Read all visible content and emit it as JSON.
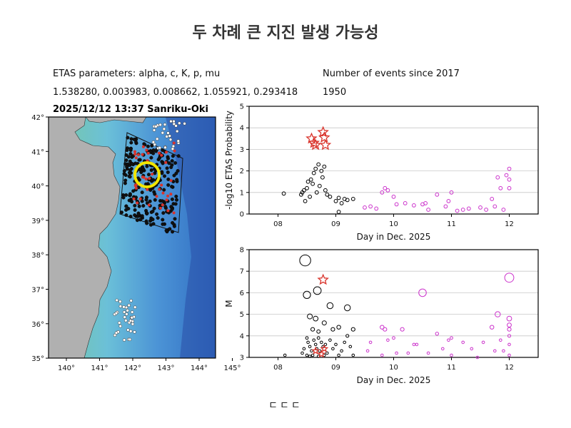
{
  "title": "두 차례 큰 지진 발생 가능성",
  "info": {
    "params_label": "ETAS parameters: alpha, c, K, p, mu",
    "params_values": "1.538280, 0.003983, 0.008662, 1.055921, 0.293418",
    "events_label": "Number of events since 2017",
    "events_value": "1950"
  },
  "map": {
    "title": "2025/12/12 13:37 Sanriku-Oki",
    "lon_ticks": [
      "140°",
      "141°",
      "142°",
      "143°",
      "144°",
      "145°"
    ],
    "lat_ticks": [
      "42°",
      "41°",
      "40°",
      "39°",
      "38°",
      "37°",
      "36°",
      "35°"
    ]
  },
  "footer": "ㄷㄷㄷ",
  "colors": {
    "prior": "#000000",
    "recent": "#cc33cc",
    "mainshock": "#d9332b",
    "highlight": "#f2e600"
  },
  "chart_data": [
    {
      "type": "scatter",
      "title": "",
      "xlabel": "Day in Dec. 2025",
      "ylabel": "-log10 ETAS Probability",
      "xlim": [
        7.5,
        12.5
      ],
      "ylim": [
        0,
        5
      ],
      "x_ticks": [
        "08",
        "09",
        "10",
        "11",
        "12"
      ],
      "y_ticks": [
        "0",
        "1",
        "2",
        "3",
        "4",
        "5"
      ],
      "grid": true,
      "series": [
        {
          "marker": "circle",
          "color": "#000000",
          "points": [
            [
              8.1,
              0.95
            ],
            [
              8.4,
              0.9
            ],
            [
              8.42,
              1.0
            ],
            [
              8.45,
              1.1
            ],
            [
              8.47,
              0.6
            ],
            [
              8.5,
              1.2
            ],
            [
              8.52,
              1.5
            ],
            [
              8.55,
              0.8
            ],
            [
              8.57,
              1.6
            ],
            [
              8.6,
              1.4
            ],
            [
              8.62,
              1.9
            ],
            [
              8.65,
              2.1
            ],
            [
              8.67,
              1.0
            ],
            [
              8.7,
              2.3
            ],
            [
              8.72,
              1.3
            ],
            [
              8.75,
              2.0
            ],
            [
              8.77,
              1.7
            ],
            [
              8.8,
              2.2
            ],
            [
              8.82,
              1.1
            ],
            [
              8.85,
              0.9
            ],
            [
              8.9,
              0.8
            ],
            [
              9.0,
              0.6
            ],
            [
              9.05,
              0.75
            ],
            [
              9.1,
              0.5
            ],
            [
              9.15,
              0.7
            ],
            [
              9.2,
              0.65
            ],
            [
              9.05,
              0.1
            ],
            [
              9.3,
              0.7
            ]
          ]
        },
        {
          "marker": "circle",
          "color": "#cc33cc",
          "points": [
            [
              9.5,
              0.3
            ],
            [
              9.6,
              0.35
            ],
            [
              9.8,
              1.0
            ],
            [
              9.85,
              1.2
            ],
            [
              9.9,
              1.1
            ],
            [
              9.7,
              0.25
            ],
            [
              10.0,
              0.8
            ],
            [
              10.05,
              0.45
            ],
            [
              10.2,
              0.5
            ],
            [
              10.35,
              0.4
            ],
            [
              10.5,
              0.45
            ],
            [
              10.55,
              0.5
            ],
            [
              10.6,
              0.2
            ],
            [
              10.75,
              0.9
            ],
            [
              10.9,
              0.35
            ],
            [
              10.95,
              0.6
            ],
            [
              11.0,
              1.0
            ],
            [
              11.1,
              0.15
            ],
            [
              11.2,
              0.2
            ],
            [
              11.3,
              0.25
            ],
            [
              11.5,
              0.3
            ],
            [
              11.6,
              0.2
            ],
            [
              11.7,
              0.7
            ],
            [
              11.8,
              1.7
            ],
            [
              11.85,
              1.2
            ],
            [
              11.95,
              1.8
            ],
            [
              12.0,
              2.1
            ],
            [
              12.0,
              1.6
            ],
            [
              12.0,
              1.2
            ],
            [
              11.75,
              0.35
            ],
            [
              11.9,
              0.2
            ]
          ]
        },
        {
          "marker": "star",
          "color": "#d9332b",
          "points": [
            [
              8.58,
              3.5
            ],
            [
              8.62,
              3.3
            ],
            [
              8.65,
              3.2
            ],
            [
              8.78,
              3.8
            ],
            [
              8.8,
              3.55
            ],
            [
              8.82,
              3.2
            ]
          ]
        }
      ]
    },
    {
      "type": "scatter",
      "title": "",
      "xlabel": "Day in Dec. 2025",
      "ylabel": "M",
      "xlim": [
        7.5,
        12.5
      ],
      "ylim": [
        3,
        8
      ],
      "x_ticks": [
        "08",
        "09",
        "10",
        "11",
        "12"
      ],
      "y_ticks": [
        "3",
        "4",
        "5",
        "6",
        "7",
        "8"
      ],
      "grid": true,
      "series": [
        {
          "marker": "circle",
          "color": "#000000",
          "points": [
            [
              8.47,
              7.5
            ],
            [
              8.5,
              5.9
            ],
            [
              8.68,
              6.1
            ],
            [
              8.9,
              5.4
            ],
            [
              9.2,
              5.3
            ],
            [
              8.55,
              4.9
            ],
            [
              8.65,
              4.8
            ],
            [
              8.8,
              4.6
            ],
            [
              8.6,
              4.3
            ],
            [
              8.7,
              4.2
            ],
            [
              8.95,
              4.3
            ],
            [
              9.05,
              4.4
            ],
            [
              9.2,
              4.0
            ],
            [
              9.3,
              4.3
            ],
            [
              8.5,
              3.9
            ],
            [
              8.52,
              3.7
            ],
            [
              8.55,
              3.5
            ],
            [
              8.58,
              3.3
            ],
            [
              8.62,
              3.8
            ],
            [
              8.65,
              3.6
            ],
            [
              8.67,
              3.4
            ],
            [
              8.7,
              3.9
            ],
            [
              8.72,
              3.3
            ],
            [
              8.75,
              3.7
            ],
            [
              8.78,
              3.5
            ],
            [
              8.82,
              3.6
            ],
            [
              8.85,
              3.2
            ],
            [
              8.9,
              3.8
            ],
            [
              8.95,
              3.4
            ],
            [
              9.0,
              3.6
            ],
            [
              9.05,
              3.1
            ],
            [
              9.1,
              3.3
            ],
            [
              9.15,
              3.7
            ],
            [
              9.25,
              3.5
            ],
            [
              9.3,
              3.1
            ],
            [
              8.5,
              3.1
            ],
            [
              8.55,
              3.05
            ],
            [
              8.6,
              3.1
            ],
            [
              8.7,
              3.05
            ],
            [
              8.8,
              3.1
            ],
            [
              8.12,
              3.1
            ],
            [
              8.42,
              3.2
            ],
            [
              8.45,
              3.4
            ]
          ]
        },
        {
          "marker": "circle",
          "color": "#cc33cc",
          "points": [
            [
              9.55,
              3.3
            ],
            [
              9.6,
              3.7
            ],
            [
              9.8,
              4.4
            ],
            [
              9.85,
              4.3
            ],
            [
              9.9,
              3.8
            ],
            [
              9.8,
              3.1
            ],
            [
              10.0,
              3.9
            ],
            [
              10.05,
              3.2
            ],
            [
              10.15,
              4.3
            ],
            [
              10.25,
              3.2
            ],
            [
              10.35,
              3.6
            ],
            [
              10.4,
              3.6
            ],
            [
              10.5,
              6.0
            ],
            [
              10.6,
              3.2
            ],
            [
              10.75,
              4.1
            ],
            [
              10.85,
              3.4
            ],
            [
              10.95,
              3.8
            ],
            [
              11.0,
              3.9
            ],
            [
              11.0,
              3.1
            ],
            [
              11.2,
              3.7
            ],
            [
              11.35,
              3.4
            ],
            [
              11.45,
              3.0
            ],
            [
              11.55,
              3.7
            ],
            [
              11.7,
              4.4
            ],
            [
              11.8,
              5.0
            ],
            [
              11.85,
              3.8
            ],
            [
              11.9,
              3.3
            ],
            [
              12.0,
              6.7
            ],
            [
              12.0,
              4.8
            ],
            [
              12.0,
              4.5
            ],
            [
              12.0,
              4.3
            ],
            [
              12.0,
              4.0
            ],
            [
              12.0,
              3.6
            ],
            [
              12.0,
              3.1
            ],
            [
              11.75,
              3.3
            ]
          ]
        },
        {
          "marker": "star",
          "color": "#d9332b",
          "points": [
            [
              8.78,
              6.6
            ],
            [
              8.65,
              3.3
            ],
            [
              8.75,
              3.15
            ],
            [
              8.8,
              3.4
            ]
          ]
        }
      ]
    }
  ]
}
